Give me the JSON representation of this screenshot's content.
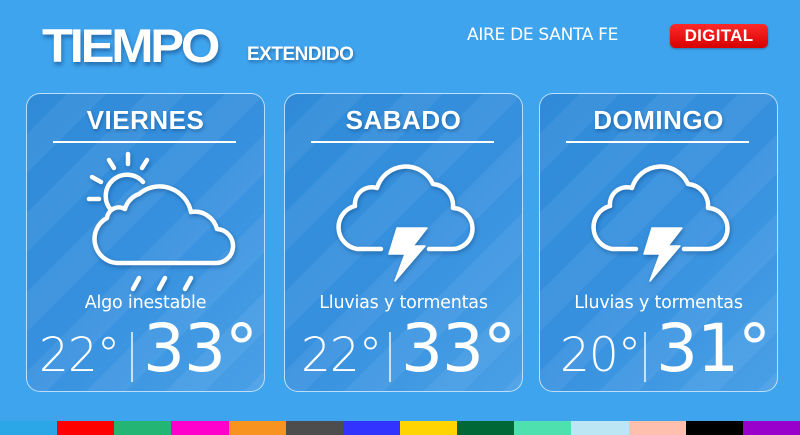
{
  "header": {
    "title": "TIEMPO",
    "subtitle": "EXTENDIDO",
    "brand": "AIRE DE SANTA FE",
    "badge": "DIGITAL"
  },
  "colors": {
    "background": "#3fa4ee",
    "badge": "#e00000"
  },
  "forecast": [
    {
      "day": "VIERNES",
      "icon": "partly-cloudy-rain-icon",
      "condition": "Algo inestable",
      "min": "22°",
      "max": "33°"
    },
    {
      "day": "SABADO",
      "icon": "thunderstorm-icon",
      "condition": "Lluvias y tormentas",
      "min": "22°",
      "max": "33°"
    },
    {
      "day": "DOMINGO",
      "icon": "thunderstorm-icon",
      "condition": "Lluvias y tormentas",
      "min": "20°",
      "max": "31°"
    }
  ],
  "color_bar": [
    "#2ba6e6",
    "#ff0000",
    "#22b573",
    "#ff00cc",
    "#f7931e",
    "#4d4d4d",
    "#3333ff",
    "#ffd400",
    "#006837",
    "#4fe0b0",
    "#bde6f5",
    "#ffbfae",
    "#000000",
    "#9900cc"
  ]
}
